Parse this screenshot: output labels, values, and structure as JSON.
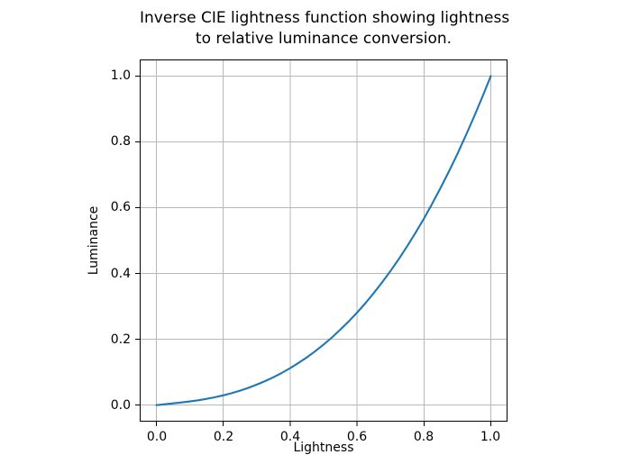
{
  "chart_data": {
    "type": "line",
    "title": "Inverse CIE lightness function showing lightness to relative luminance conversion.",
    "title_lines": [
      "Inverse CIE lightness function showing lightness",
      "to relative luminance conversion."
    ],
    "xlabel": "Lightness",
    "ylabel": "Luminance",
    "xlim": [
      -0.05,
      1.05
    ],
    "ylim": [
      -0.05,
      1.05
    ],
    "x_ticks": [
      0.0,
      0.2,
      0.4,
      0.6,
      0.8,
      1.0
    ],
    "x_tick_labels": [
      "0.0",
      "0.2",
      "0.4",
      "0.6",
      "0.8",
      "1.0"
    ],
    "y_ticks": [
      0.0,
      0.2,
      0.4,
      0.6,
      0.8,
      1.0
    ],
    "y_tick_labels": [
      "0.0",
      "0.2",
      "0.4",
      "0.6",
      "0.8",
      "1.0"
    ],
    "grid": true,
    "legend": "none",
    "colors": {
      "line": "#1f77b4",
      "grid": "#b8b8b8",
      "spine": "#000000",
      "background": "#ffffff"
    },
    "series": [
      {
        "name": "inverse-cie-lightness",
        "x": [
          0.0,
          0.025,
          0.05,
          0.075,
          0.1,
          0.125,
          0.15,
          0.175,
          0.2,
          0.225,
          0.25,
          0.275,
          0.3,
          0.325,
          0.35,
          0.375,
          0.4,
          0.425,
          0.45,
          0.475,
          0.5,
          0.525,
          0.55,
          0.575,
          0.6,
          0.625,
          0.65,
          0.675,
          0.7,
          0.725,
          0.75,
          0.775,
          0.8,
          0.825,
          0.85,
          0.875,
          0.9,
          0.925,
          0.95,
          0.975,
          1.0
        ],
        "y": [
          0.0,
          0.0028,
          0.0055,
          0.0083,
          0.0113,
          0.0148,
          0.0191,
          0.0241,
          0.0299,
          0.0366,
          0.0442,
          0.0527,
          0.0624,
          0.0731,
          0.085,
          0.0981,
          0.1125,
          0.1283,
          0.1454,
          0.164,
          0.1842,
          0.2059,
          0.2293,
          0.2544,
          0.2812,
          0.3099,
          0.3405,
          0.373,
          0.4075,
          0.4441,
          0.4827,
          0.5237,
          0.5668,
          0.6123,
          0.6601,
          0.7103,
          0.763,
          0.8183,
          0.8762,
          0.9367,
          1.0
        ]
      }
    ]
  }
}
